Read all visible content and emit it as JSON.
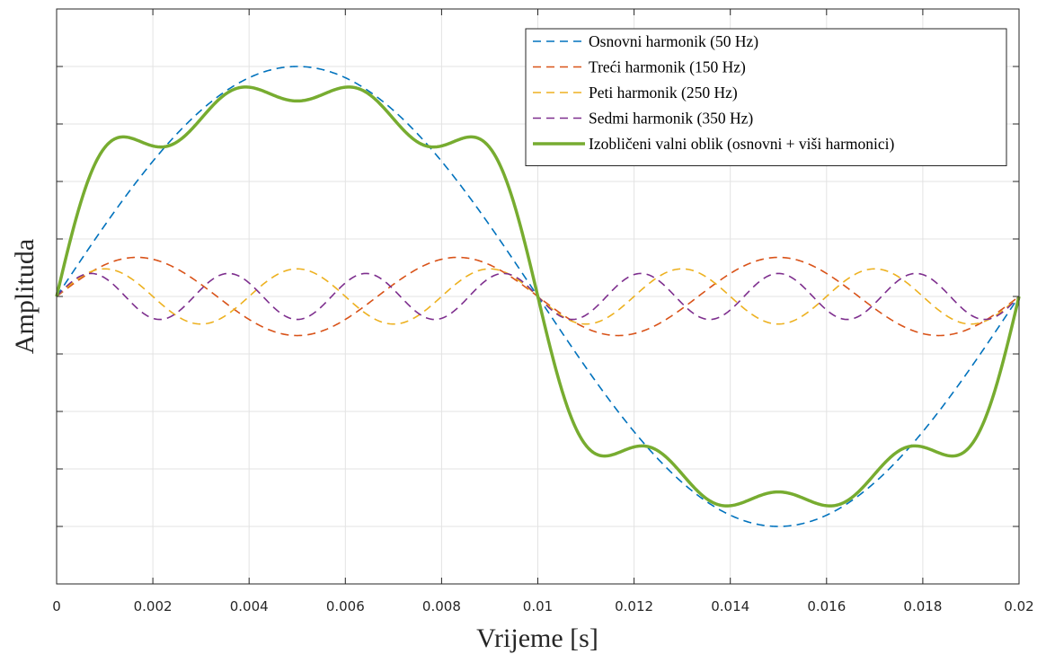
{
  "chart_data": {
    "type": "line",
    "title": "",
    "xlabel": "Vrijeme [s]",
    "ylabel": "Amplituda",
    "xlim": [
      0,
      0.02
    ],
    "ylim": [
      -1.25,
      1.25
    ],
    "x_ticks": [
      "0",
      "0.002",
      "0.004",
      "0.006",
      "0.008",
      "0.01",
      "0.012",
      "0.014",
      "0.016",
      "0.018",
      "0.02"
    ],
    "y_ticks_shown": false,
    "grid": true,
    "legend_position": "top-right",
    "series": [
      {
        "name": "Osnovni harmonik (50 Hz)",
        "frequency_hz": 50,
        "amplitude": 1.0,
        "style": "dashed",
        "color": "#0072BD"
      },
      {
        "name": "Treći harmonik (150 Hz)",
        "frequency_hz": 150,
        "amplitude": 0.17,
        "style": "dashed",
        "color": "#D95319"
      },
      {
        "name": "Peti harmonik (250 Hz)",
        "frequency_hz": 250,
        "amplitude": 0.12,
        "style": "dashed",
        "color": "#EDB120"
      },
      {
        "name": "Sedmi harmonik (350 Hz)",
        "frequency_hz": 350,
        "amplitude": 0.1,
        "style": "dashed",
        "color": "#7E2F8E"
      },
      {
        "name": "Izobličeni valni oblik (osnovni + viši harmonici)",
        "components_hz": [
          50,
          150,
          250,
          350
        ],
        "style": "solid",
        "color": "#77AC30"
      }
    ]
  }
}
